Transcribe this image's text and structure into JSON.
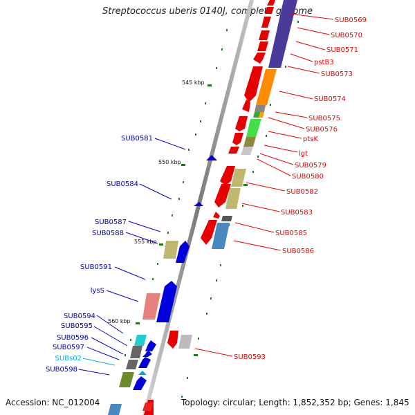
{
  "title": "Streptococcus uberis 0140J, complete genome",
  "footer": {
    "accession": "Accession: NC_012004",
    "summary": "Topology: circular; Length: 1,852,352 bp; Genes: 1,845"
  },
  "kbp_ticks": [
    "545 kbp",
    "550 kbp",
    "555 kbp",
    "560 kbp"
  ],
  "forward_labels": [
    "SUB0569",
    "SUB0570",
    "SUB0571",
    "pstB3",
    "SUB0573",
    "SUB0574",
    "SUB0575",
    "SUB0576",
    "ptsK",
    "lgt",
    "SUB0579",
    "SUB0580",
    "SUB0582",
    "SUB0583",
    "SUB0585",
    "SUB0586",
    "SUB0593"
  ],
  "reverse_labels": [
    "SUB0581",
    "SUB0584",
    "SUB0587",
    "SUB0588",
    "SUB0591",
    "lysS",
    "SUB0594",
    "SUB0595",
    "SUB0596",
    "SUB0597",
    "SUBs02",
    "SUB0598"
  ],
  "colors": {
    "forward": "#e60000",
    "reverse": "#0000dd",
    "rna": "#00a0d0",
    "backbone": "#999999",
    "tick": "#1a7a1a"
  }
}
